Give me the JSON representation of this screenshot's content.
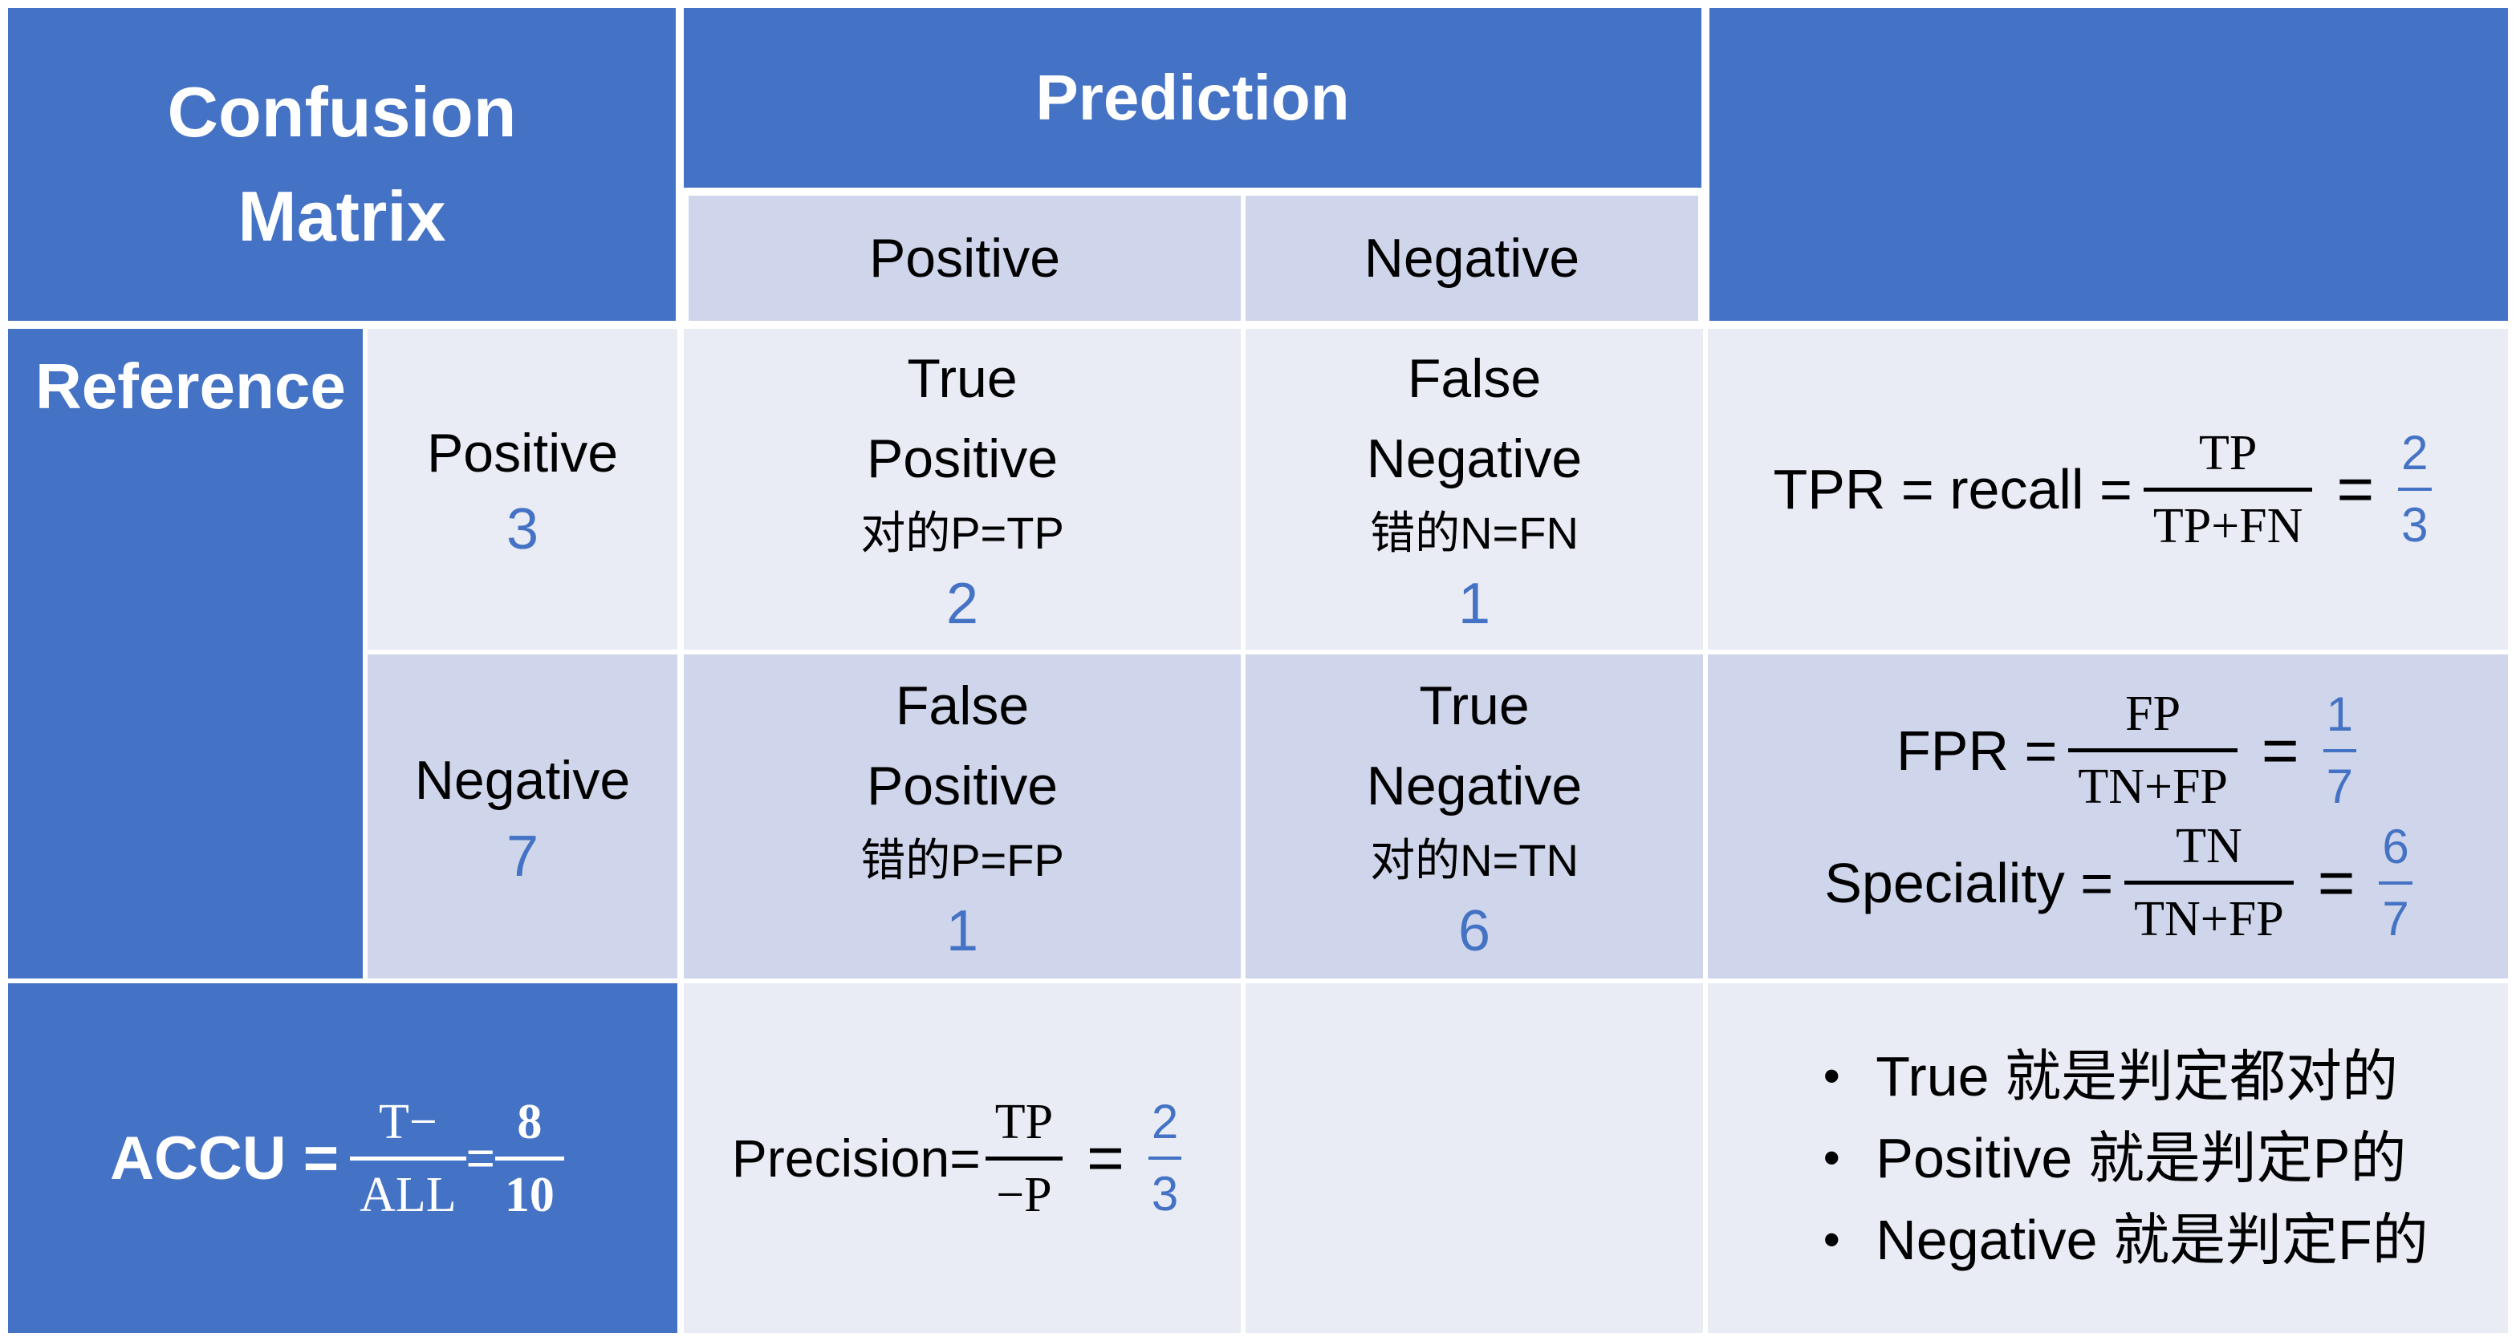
{
  "header": {
    "title_line1": "Confusion",
    "title_line2": "Matrix",
    "prediction": "Prediction",
    "pred_positive": "Positive",
    "pred_negative": "Negative",
    "reference": "Reference"
  },
  "reference_rows": [
    {
      "label": "Positive",
      "count": "3"
    },
    {
      "label": "Negative",
      "count": "7"
    }
  ],
  "cells": {
    "tp": {
      "line1": "True",
      "line2": "Positive",
      "cn": "对的P=TP",
      "value": "2"
    },
    "fn": {
      "line1": "False",
      "line2": "Negative",
      "cn": "错的N=FN",
      "value": "1"
    },
    "fp": {
      "line1": "False",
      "line2": "Positive",
      "cn": "错的P=FP",
      "value": "1"
    },
    "tn": {
      "line1": "True",
      "line2": "Negative",
      "cn": "对的N=TN",
      "value": "6"
    }
  },
  "formulas": {
    "tpr": {
      "label": "TPR = recall =",
      "num": "TP",
      "den": "TP+FN",
      "eq": "=",
      "val_num": "2",
      "val_den": "3"
    },
    "fpr": {
      "label": "FPR =",
      "num": "FP",
      "den": "TN+FP",
      "eq": "=",
      "val_num": "1",
      "val_den": "7"
    },
    "speciality": {
      "label": "Speciality =",
      "num": "TN",
      "den": "TN+FP",
      "eq": "=",
      "val_num": "6",
      "val_den": "7"
    },
    "accu": {
      "label": "ACCU =",
      "num": "T−",
      "den": "ALL",
      "eq": "=",
      "val_num": "8",
      "val_den": "10"
    },
    "precision": {
      "label": "Precision=",
      "num": "TP",
      "den": "−P",
      "eq": "=",
      "val_num": "2",
      "val_den": "3"
    }
  },
  "notes": [
    "True 就是判定都对的",
    "Positive 就是判定P的",
    "Negative 就是判定F的"
  ],
  "notes_bullet": "•",
  "colors": {
    "blue": "#4472C4",
    "light": "#E9EBF5",
    "mid": "#CFD5EA"
  }
}
